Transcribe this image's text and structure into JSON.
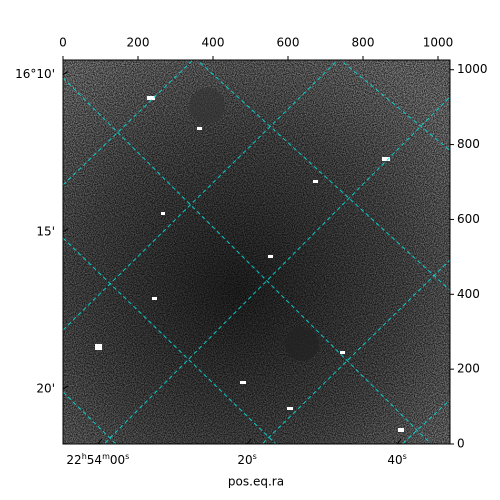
{
  "chart_data": {
    "type": "image",
    "xlabel": "pos.eq.ra",
    "xlim": [
      0,
      1032
    ],
    "ylim": [
      0,
      1026
    ],
    "xticks": [
      0,
      200,
      400,
      600,
      800,
      1000
    ],
    "yticks": [
      0,
      200,
      400,
      600,
      800,
      1000
    ],
    "dec_ticks": [
      {
        "value": 987,
        "label": "16°10'"
      },
      {
        "value": 567,
        "label": "15'"
      },
      {
        "value": 147,
        "label": "20'"
      }
    ],
    "ra_ticks": [
      {
        "value": 93,
        "label": "22h54m00s"
      },
      {
        "value": 491,
        "label": "20s"
      },
      {
        "value": 891,
        "label": "40s"
      }
    ],
    "grid_color": "#00e5e5"
  }
}
